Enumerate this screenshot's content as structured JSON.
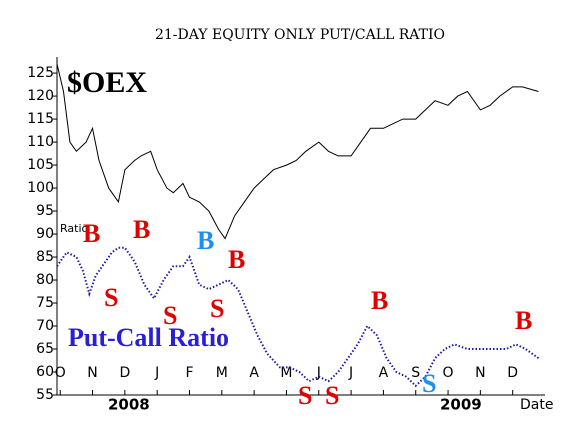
{
  "chart_data": {
    "type": "line",
    "title": "21-DAY EQUITY ONLY PUT/CALL RATIO",
    "x_label": "Date",
    "year_labels": [
      "2008",
      "2009"
    ],
    "ratio_label": "Ratio",
    "xlim": [
      -0.1,
      15.0
    ],
    "xticks": [
      {
        "value": 0,
        "label": "O"
      },
      {
        "value": 1,
        "label": "N"
      },
      {
        "value": 2,
        "label": "D"
      },
      {
        "value": 3,
        "label": "J"
      },
      {
        "value": 4,
        "label": "F"
      },
      {
        "value": 5,
        "label": "M"
      },
      {
        "value": 6,
        "label": "A"
      },
      {
        "value": 7,
        "label": "M"
      },
      {
        "value": 8,
        "label": "J"
      },
      {
        "value": 9,
        "label": "J"
      },
      {
        "value": 10,
        "label": "A"
      },
      {
        "value": 11,
        "label": "S"
      },
      {
        "value": 12,
        "label": "O"
      },
      {
        "value": 13,
        "label": "N"
      },
      {
        "value": 14,
        "label": "D"
      }
    ],
    "ylim": [
      55,
      128.5
    ],
    "yticks": [
      55,
      60,
      65,
      70,
      75,
      80,
      85,
      90,
      95,
      100,
      105,
      110,
      115,
      120,
      125
    ],
    "series": [
      {
        "name": "$OEX",
        "color": "#000000",
        "style": "solid",
        "x": [
          -0.1,
          0.1,
          0.3,
          0.5,
          0.8,
          1.0,
          1.2,
          1.5,
          1.8,
          2.0,
          2.3,
          2.5,
          2.8,
          3.0,
          3.3,
          3.5,
          3.8,
          4.0,
          4.3,
          4.6,
          4.9,
          5.1,
          5.4,
          5.7,
          6.0,
          6.3,
          6.6,
          7.0,
          7.3,
          7.6,
          8.0,
          8.3,
          8.6,
          9.0,
          9.3,
          9.6,
          10.0,
          10.3,
          10.6,
          11.0,
          11.3,
          11.6,
          12.0,
          12.3,
          12.6,
          13.0,
          13.3,
          13.6,
          14.0,
          14.3,
          14.8
        ],
        "values": [
          127,
          121,
          110,
          108,
          110,
          113,
          106,
          100,
          97,
          104,
          106,
          107,
          108,
          104,
          100,
          99,
          101,
          98,
          97,
          95,
          91,
          89,
          94,
          97,
          100,
          102,
          104,
          105,
          106,
          108,
          110,
          108,
          107,
          107,
          110,
          113,
          113,
          114,
          115,
          115,
          117,
          119,
          118,
          120,
          121,
          117,
          118,
          120,
          122,
          122,
          121
        ]
      },
      {
        "name": "Put-Call Ratio",
        "color": "#1a1aa6",
        "style": "dotted",
        "x": [
          -0.1,
          0.2,
          0.5,
          0.7,
          0.9,
          1.1,
          1.4,
          1.6,
          1.8,
          2.0,
          2.3,
          2.6,
          2.9,
          3.2,
          3.5,
          3.8,
          4.0,
          4.3,
          4.6,
          4.9,
          5.2,
          5.5,
          5.8,
          6.1,
          6.4,
          6.8,
          7.1,
          7.4,
          7.7,
          8.0,
          8.3,
          8.6,
          8.9,
          9.2,
          9.5,
          9.8,
          10.1,
          10.4,
          10.7,
          11.0,
          11.3,
          11.6,
          11.9,
          12.2,
          12.6,
          13.0,
          13.4,
          13.8,
          14.1,
          14.4,
          14.8
        ],
        "values": [
          83,
          86,
          85,
          82,
          77,
          81,
          84,
          86,
          87,
          87,
          84,
          79,
          76,
          80,
          83,
          83,
          85,
          79,
          78,
          79,
          80,
          78,
          73,
          68,
          64,
          61,
          61,
          60,
          58,
          59,
          58,
          60,
          63,
          66,
          70,
          68,
          63,
          60,
          59,
          57,
          59,
          63,
          65,
          66,
          65,
          65,
          65,
          65,
          66,
          65,
          63
        ]
      }
    ],
    "annotations": [
      {
        "text": "$OEX",
        "color": "#000000"
      },
      {
        "text": "Put-Call Ratio",
        "color": "#2a1fd6"
      },
      {
        "text": "B",
        "color": "#e00000"
      },
      {
        "text": "B",
        "color": "#e00000"
      },
      {
        "text": "B",
        "color": "#1e8ff0"
      },
      {
        "text": "B",
        "color": "#e00000"
      },
      {
        "text": "S",
        "color": "#e00000"
      },
      {
        "text": "S",
        "color": "#e00000"
      },
      {
        "text": "S",
        "color": "#e00000"
      },
      {
        "text": "S",
        "color": "#e00000"
      },
      {
        "text": "S",
        "color": "#e00000"
      },
      {
        "text": "B",
        "color": "#e00000"
      },
      {
        "text": "S",
        "color": "#1e8ff0"
      },
      {
        "text": "B",
        "color": "#e00000"
      }
    ]
  }
}
